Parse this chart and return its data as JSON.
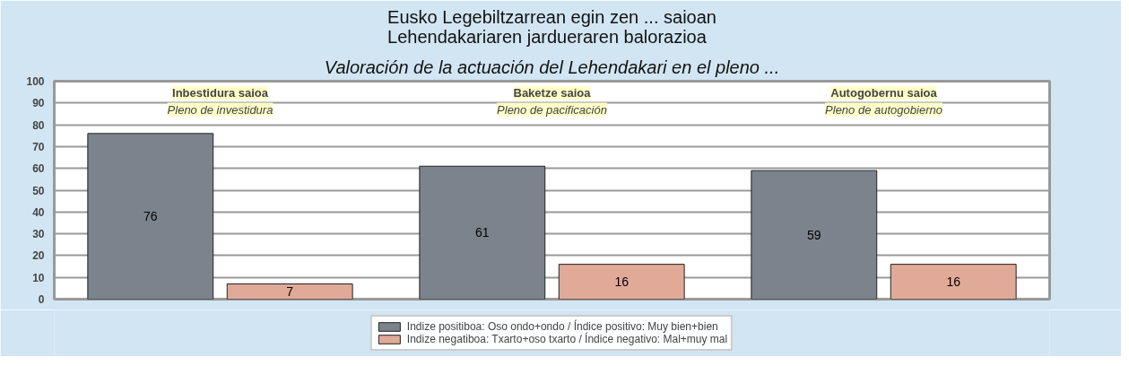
{
  "chart_data": {
    "type": "bar",
    "title": "Eusko Legebiltzarrean egin zen ... saioan\nLehendakariaren jardueraren balorazioa",
    "subtitle": "Valoración de la actuación del Lehendakari en el pleno ...",
    "categories": [
      "Inbestidura saioa\nPleno de investidura",
      "Baketze saioa\nPleno de pacificación",
      "Autogobernu saioa\nPleno de autogobierno"
    ],
    "series": [
      {
        "name": "Indize positiboa: Oso ondo+ondo / Índice positivo: Muy bien+bien",
        "color": "#7b838c",
        "values": [
          76,
          61,
          59
        ]
      },
      {
        "name": "Indize negatiboa: Txarto+oso txarto / Índice negativo: Mal+muy mal",
        "color": "#e0a998",
        "values": [
          7,
          16,
          16
        ]
      }
    ],
    "ylim": [
      0,
      100
    ],
    "yticks": [
      0,
      10,
      20,
      30,
      40,
      50,
      60,
      70,
      80,
      90,
      100
    ],
    "grid": "y",
    "data_labels": true,
    "legend": "bottom"
  }
}
